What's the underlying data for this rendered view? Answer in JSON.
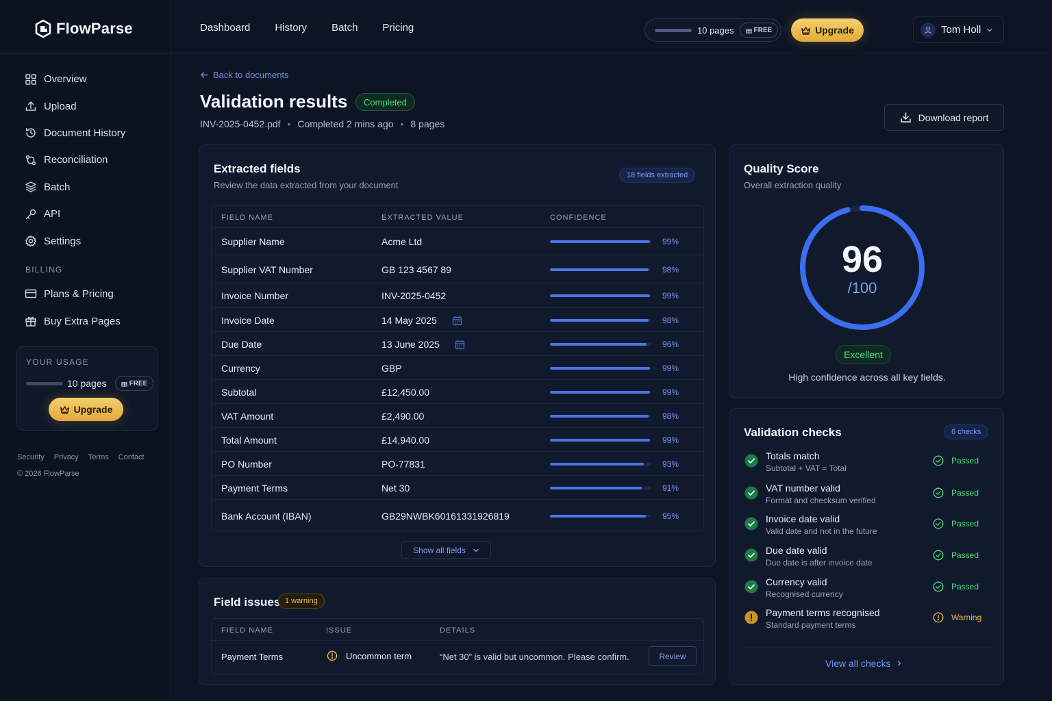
{
  "brand": {
    "name": "FlowParse"
  },
  "sidebar": {
    "items": [
      {
        "label": "Overview",
        "icon": "grid-icon"
      },
      {
        "label": "Upload",
        "icon": "upload-icon"
      },
      {
        "label": "Document History",
        "icon": "history-icon"
      },
      {
        "label": "Reconciliation",
        "icon": "reconcile-icon"
      },
      {
        "label": "Batch",
        "icon": "layers-icon"
      },
      {
        "label": "API",
        "icon": "key-icon"
      },
      {
        "label": "Settings",
        "icon": "gear-icon"
      }
    ],
    "billing_label": "BILLING",
    "billing_items": [
      {
        "label": "Plans & Pricing",
        "icon": "credit-card-icon"
      },
      {
        "label": "Buy Extra Pages",
        "icon": "gift-icon"
      }
    ],
    "usage": {
      "title": "YOUR USAGE",
      "pages": "10 pages",
      "plan": "FREE",
      "upgrade": "Upgrade"
    },
    "footer_links": [
      "Security",
      "Privacy",
      "Terms",
      "Contact"
    ],
    "copyright": "© 2026 FlowParse"
  },
  "topbar": {
    "nav": [
      "Dashboard",
      "History",
      "Batch",
      "Pricing"
    ],
    "pages": "10 pages",
    "plan": "FREE",
    "upgrade": "Upgrade",
    "user": "Tom Holl"
  },
  "header": {
    "back": "Back to documents",
    "title": "Validation results",
    "status": "Completed",
    "meta": [
      "INV-2025-0452.pdf",
      "Completed 2 mins ago",
      "8 pages"
    ],
    "download": "Download report"
  },
  "extracted": {
    "title": "Extracted fields",
    "subtitle": "Review the data extracted from your document",
    "badge": "18 fields extracted",
    "columns": [
      "FIELD NAME",
      "EXTRACTED VALUE",
      "CONFIDENCE"
    ],
    "rows": [
      {
        "field": "Supplier Name",
        "value": "Acme Ltd",
        "confidence": "99%",
        "level": 0.99
      },
      {
        "field": "Supplier VAT Number",
        "value": "GB 123 4567 89",
        "confidence": "98%",
        "level": 0.98
      },
      {
        "field": "Invoice Number",
        "value": "INV-2025-0452",
        "confidence": "99%",
        "level": 0.99
      },
      {
        "field": "Invoice Date",
        "value": "14 May 2025",
        "confidence": "98%",
        "level": 0.98,
        "icon": "calendar-icon"
      },
      {
        "field": "Due Date",
        "value": "13 June 2025",
        "confidence": "96%",
        "level": 0.96,
        "icon": "calendar-icon"
      },
      {
        "field": "Currency",
        "value": "GBP",
        "confidence": "99%",
        "level": 0.99
      },
      {
        "field": "Subtotal",
        "value": "£12,450.00",
        "confidence": "99%",
        "level": 0.99
      },
      {
        "field": "VAT Amount",
        "value": "£2,490.00",
        "confidence": "98%",
        "level": 0.98
      },
      {
        "field": "Total Amount",
        "value": "£14,940.00",
        "confidence": "99%",
        "level": 0.99
      },
      {
        "field": "PO Number",
        "value": "PO-77831",
        "confidence": "93%",
        "level": 0.93
      },
      {
        "field": "Payment Terms",
        "value": "Net 30",
        "confidence": "91%",
        "level": 0.91
      },
      {
        "field": "Bank Account (IBAN)",
        "value": "GB29NWBK60161331926819",
        "confidence": "95%",
        "level": 0.95
      }
    ],
    "show_all": "Show all fields"
  },
  "issues": {
    "title": "Field issues",
    "badge": "1 warning",
    "columns": [
      "FIELD NAME",
      "ISSUE",
      "DETAILS"
    ],
    "row": {
      "field": "Payment Terms",
      "issue": "Uncommon term",
      "details": "“Net 30” is valid but uncommon. Please confirm.",
      "action": "Review"
    }
  },
  "quality": {
    "title": "Quality Score",
    "subtitle": "Overall extraction quality",
    "score": "96",
    "out_of": "/100",
    "level": 0.96,
    "rating": "Excellent",
    "note": "High confidence across all key fields."
  },
  "validation": {
    "title": "Validation checks",
    "badge": "6 checks",
    "checks": [
      {
        "title": "Totals match",
        "desc": "Subtotal + VAT = Total",
        "status": "Passed",
        "kind": "pass"
      },
      {
        "title": "VAT number valid",
        "desc": "Format and checksum verified",
        "status": "Passed",
        "kind": "pass"
      },
      {
        "title": "Invoice date valid",
        "desc": "Valid date and not in the future",
        "status": "Passed",
        "kind": "pass"
      },
      {
        "title": "Due date valid",
        "desc": "Due date is after invoice date",
        "status": "Passed",
        "kind": "pass"
      },
      {
        "title": "Currency valid",
        "desc": "Recognised currency",
        "status": "Passed",
        "kind": "pass"
      },
      {
        "title": "Payment terms recognised",
        "desc": "Standard payment terms",
        "status": "Warning",
        "kind": "warn"
      }
    ],
    "view_all": "View all checks"
  },
  "colors": {
    "accent": "#4a74e8",
    "success": "#4ade80",
    "warning": "#e8b84a",
    "background": "#0d1424"
  }
}
